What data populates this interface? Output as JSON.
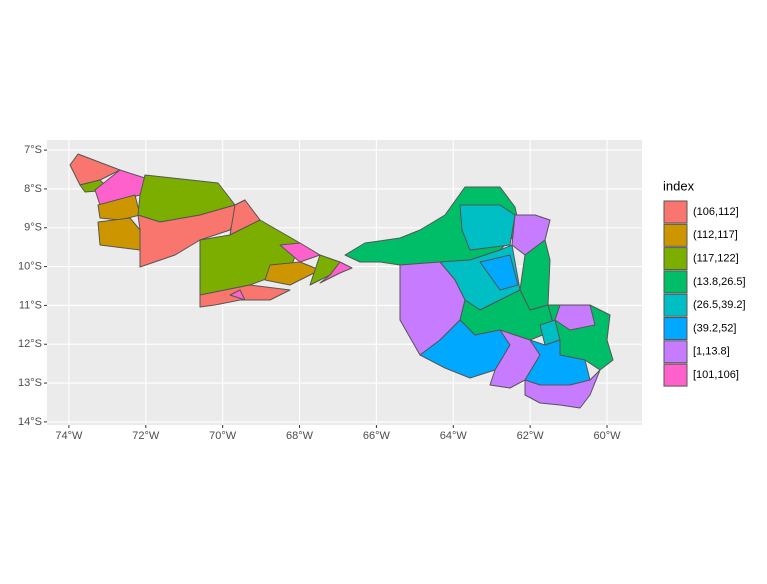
{
  "map": {
    "xlim": [
      -74.57,
      -59.09
    ],
    "ylim": [
      -14.08,
      -6.74
    ],
    "xticks": [
      {
        "value": -74,
        "label": "74°W"
      },
      {
        "value": -72,
        "label": "72°W"
      },
      {
        "value": -70,
        "label": "70°W"
      },
      {
        "value": -68,
        "label": "68°W"
      },
      {
        "value": -66,
        "label": "66°W"
      },
      {
        "value": -64,
        "label": "64°W"
      },
      {
        "value": -62,
        "label": "62°W"
      },
      {
        "value": -60,
        "label": "60°W"
      }
    ],
    "yticks": [
      {
        "value": -7,
        "label": "7°S"
      },
      {
        "value": -8,
        "label": "8°S"
      },
      {
        "value": -9,
        "label": "9°S"
      },
      {
        "value": -10,
        "label": "10°S"
      },
      {
        "value": -11,
        "label": "11°S"
      },
      {
        "value": -12,
        "label": "12°S"
      },
      {
        "value": -13,
        "label": "13°S"
      },
      {
        "value": -14,
        "label": "14°S"
      }
    ],
    "legend": {
      "title": "index",
      "items": [
        {
          "label": "(106,112]",
          "color": "#F8766D"
        },
        {
          "label": "(112,117]",
          "color": "#CD9600"
        },
        {
          "label": "(117,122]",
          "color": "#7CAE00"
        },
        {
          "label": "(13.8,26.5]",
          "color": "#00BE67"
        },
        {
          "label": "(26.5,39.2]",
          "color": "#00BFC4"
        },
        {
          "label": "(39.2,52]",
          "color": "#00A9FF"
        },
        {
          "label": "[1,13.8]",
          "color": "#C77CFF"
        },
        {
          "label": "[101,106]",
          "color": "#FF61CC"
        }
      ]
    }
  }
}
